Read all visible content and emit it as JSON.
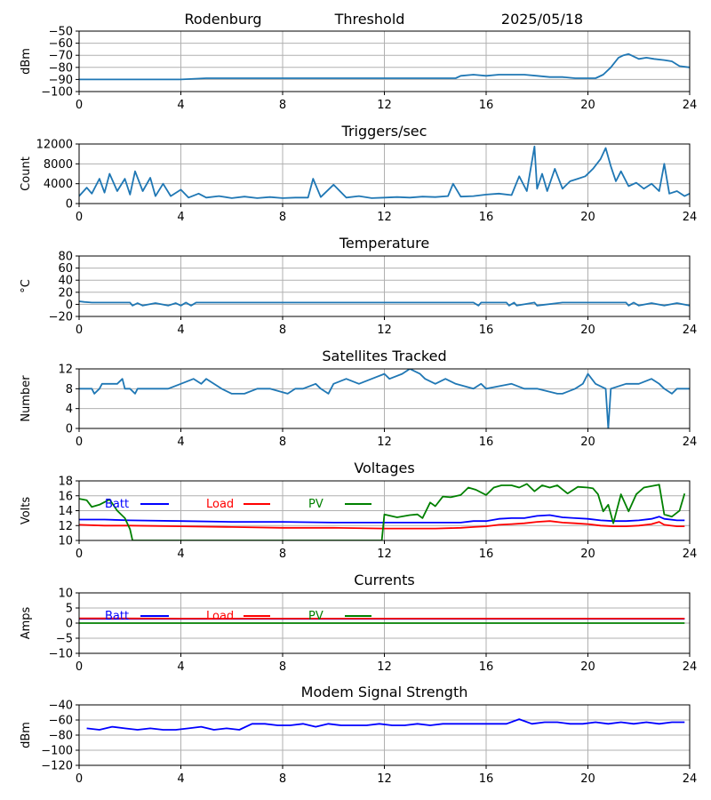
{
  "header": {
    "station": "Rodenburg",
    "mode": "Threshold",
    "date": "2025/05/18"
  },
  "colors": {
    "series_default": "#1f77b4",
    "batt": "#0000ff",
    "load": "#ff0000",
    "pv": "#008000",
    "grid": "#b0b0b0"
  },
  "chart_data": [
    {
      "id": "threshold",
      "type": "line",
      "title": "",
      "xlabel": "",
      "ylabel": "dBm",
      "xlim": [
        0,
        24
      ],
      "ylim": [
        -100,
        -50
      ],
      "xticks": [
        0,
        4,
        8,
        12,
        16,
        20,
        24
      ],
      "yticks": [
        -100,
        -90,
        -80,
        -70,
        -60,
        -50
      ],
      "grid": true,
      "series": [
        {
          "color": "#1f77b4",
          "x": [
            0,
            0.5,
            1,
            2,
            3,
            4,
            5,
            6,
            7,
            8,
            9,
            10,
            11,
            12,
            13,
            14,
            14.8,
            15,
            15.5,
            16,
            16.5,
            17,
            17.5,
            18,
            18.5,
            19,
            19.5,
            20,
            20.3,
            20.6,
            20.9,
            21.2,
            21.4,
            21.6,
            21.8,
            22,
            22.3,
            22.6,
            23,
            23.3,
            23.6,
            24
          ],
          "y": [
            -90,
            -90,
            -90,
            -90,
            -90,
            -90,
            -89,
            -89,
            -89,
            -89,
            -89,
            -89,
            -89,
            -89,
            -89,
            -89,
            -89,
            -87,
            -86,
            -87,
            -86,
            -86,
            -86,
            -87,
            -88,
            -88,
            -89,
            -89,
            -89,
            -86,
            -80,
            -72,
            -70,
            -69,
            -71,
            -73,
            -72,
            -73,
            -74,
            -75,
            -79,
            -80
          ]
        }
      ]
    },
    {
      "id": "triggers",
      "type": "line",
      "title": "Triggers/sec",
      "xlabel": "",
      "ylabel": "Count",
      "xlim": [
        0,
        24
      ],
      "ylim": [
        0,
        12000
      ],
      "xticks": [
        0,
        4,
        8,
        12,
        16,
        20,
        24
      ],
      "yticks": [
        0,
        4000,
        8000,
        12000
      ],
      "grid": true,
      "series": [
        {
          "color": "#1f77b4",
          "x": [
            0,
            0.3,
            0.5,
            0.8,
            1,
            1.2,
            1.5,
            1.8,
            2,
            2.2,
            2.5,
            2.8,
            3,
            3.3,
            3.6,
            4,
            4.3,
            4.7,
            5,
            5.5,
            6,
            6.5,
            7,
            7.5,
            8,
            8.5,
            9,
            9.2,
            9.5,
            10,
            10.5,
            11,
            11.5,
            12,
            12.5,
            13,
            13.5,
            14,
            14.5,
            14.7,
            15,
            15.5,
            16,
            16.5,
            17,
            17.3,
            17.6,
            17.9,
            18,
            18.2,
            18.4,
            18.7,
            19,
            19.3,
            19.6,
            19.9,
            20.2,
            20.5,
            20.7,
            20.9,
            21.1,
            21.3,
            21.6,
            21.9,
            22.2,
            22.5,
            22.8,
            23,
            23.2,
            23.5,
            23.8,
            24
          ],
          "y": [
            1500,
            3200,
            2000,
            5000,
            2200,
            6000,
            2500,
            5000,
            1800,
            6500,
            2500,
            5200,
            1500,
            4000,
            1500,
            2800,
            1200,
            2000,
            1200,
            1500,
            1100,
            1400,
            1100,
            1300,
            1100,
            1200,
            1200,
            5000,
            1300,
            3800,
            1200,
            1500,
            1100,
            1200,
            1300,
            1200,
            1400,
            1300,
            1500,
            4000,
            1400,
            1500,
            1800,
            2000,
            1700,
            5500,
            2500,
            11500,
            3000,
            6000,
            2500,
            7000,
            3000,
            4500,
            5000,
            5500,
            7000,
            9000,
            11200,
            7500,
            4500,
            6500,
            3500,
            4200,
            3000,
            4000,
            2500,
            8000,
            2000,
            2500,
            1500,
            2000
          ]
        }
      ]
    },
    {
      "id": "temperature",
      "type": "line",
      "title": "Temperature",
      "xlabel": "",
      "ylabel": "°C",
      "xlim": [
        0,
        24
      ],
      "ylim": [
        -20,
        80
      ],
      "xticks": [
        0,
        4,
        8,
        12,
        16,
        20,
        24
      ],
      "yticks": [
        -20,
        0,
        20,
        40,
        60,
        80
      ],
      "grid": true,
      "series": [
        {
          "color": "#1f77b4",
          "x": [
            0,
            0.2,
            0.5,
            1,
            2,
            2.1,
            2.3,
            2.5,
            3,
            3.5,
            3.8,
            4,
            4.2,
            4.4,
            4.6,
            5,
            8,
            12,
            15.5,
            15.7,
            15.8,
            16,
            16.8,
            16.9,
            17.1,
            17.2,
            17.9,
            18,
            19,
            19.1,
            21.5,
            21.6,
            21.8,
            22,
            22.5,
            23,
            23.5,
            24
          ],
          "y": [
            5,
            4,
            3,
            3,
            3,
            -2,
            2,
            -2,
            2,
            -2,
            2,
            -2,
            3,
            -2,
            3,
            3,
            3,
            3,
            3,
            -2,
            3,
            3,
            3,
            -2,
            3,
            -2,
            3,
            -2,
            3,
            3,
            3,
            -2,
            3,
            -2,
            2,
            -2,
            2,
            -2
          ]
        }
      ]
    },
    {
      "id": "satellites",
      "type": "line",
      "title": "Satellites Tracked",
      "xlabel": "",
      "ylabel": "Number",
      "xlim": [
        0,
        24
      ],
      "ylim": [
        0,
        12
      ],
      "xticks": [
        0,
        4,
        8,
        12,
        16,
        20,
        24
      ],
      "yticks": [
        0,
        4,
        8,
        12
      ],
      "grid": true,
      "series": [
        {
          "color": "#1f77b4",
          "x": [
            0,
            0.5,
            0.6,
            0.8,
            0.9,
            1.5,
            1.7,
            1.8,
            2,
            2.2,
            2.3,
            2.7,
            3.5,
            4,
            4.5,
            4.8,
            5,
            5.3,
            5.6,
            6,
            6.5,
            7,
            7.5,
            8.2,
            8.5,
            8.8,
            9.3,
            9.5,
            9.8,
            10,
            10.5,
            11,
            11.5,
            12,
            12.2,
            12.7,
            13,
            13.4,
            13.6,
            14,
            14.4,
            14.8,
            15.5,
            15.8,
            16,
            17,
            17.5,
            18,
            18.8,
            19,
            19.5,
            19.8,
            20,
            20.3,
            20.7,
            20.8,
            20.9,
            21.5,
            22,
            22.5,
            22.8,
            23,
            23.3,
            23.5,
            24
          ],
          "y": [
            8,
            8,
            7,
            8,
            9,
            9,
            10,
            8,
            8,
            7,
            8,
            8,
            8,
            9,
            10,
            9,
            10,
            9,
            8,
            7,
            7,
            8,
            8,
            7,
            8,
            8,
            9,
            8,
            7,
            9,
            10,
            9,
            10,
            11,
            10,
            11,
            12,
            11,
            10,
            9,
            10,
            9,
            8,
            9,
            8,
            9,
            8,
            8,
            7,
            7,
            8,
            9,
            11,
            9,
            8,
            0,
            8,
            9,
            9,
            10,
            9,
            8,
            7,
            8,
            8
          ]
        }
      ]
    },
    {
      "id": "voltages",
      "type": "line",
      "title": "Voltages",
      "xlabel": "",
      "ylabel": "Volts",
      "xlim": [
        0,
        24
      ],
      "ylim": [
        10,
        18
      ],
      "xticks": [
        0,
        4,
        8,
        12,
        16,
        20,
        24
      ],
      "yticks": [
        10,
        12,
        14,
        16,
        18
      ],
      "grid": true,
      "legend": [
        "Batt",
        "Load",
        "PV"
      ],
      "series": [
        {
          "name": "Batt",
          "color": "#0000ff",
          "x": [
            0,
            1,
            2,
            4,
            6,
            8,
            10,
            12,
            14,
            15,
            15.5,
            16,
            16.5,
            17,
            17.5,
            18,
            18.5,
            19,
            19.5,
            20,
            20.5,
            21,
            21.5,
            22,
            22.5,
            22.8,
            23,
            23.5,
            23.8
          ],
          "y": [
            12.8,
            12.8,
            12.7,
            12.6,
            12.5,
            12.5,
            12.4,
            12.4,
            12.4,
            12.4,
            12.6,
            12.6,
            12.9,
            13.0,
            13.0,
            13.3,
            13.4,
            13.1,
            13.0,
            12.9,
            12.7,
            12.6,
            12.6,
            12.7,
            12.9,
            13.2,
            12.9,
            12.7,
            12.7
          ]
        },
        {
          "name": "Load",
          "color": "#ff0000",
          "x": [
            0,
            1,
            2,
            4,
            6,
            8,
            10,
            12,
            14,
            15,
            15.5,
            16,
            16.5,
            17,
            17.5,
            18,
            18.5,
            19,
            19.5,
            20,
            20.5,
            21,
            21.5,
            22,
            22.5,
            22.8,
            23,
            23.5,
            23.8
          ],
          "y": [
            12.1,
            12.0,
            12.0,
            11.9,
            11.8,
            11.7,
            11.7,
            11.6,
            11.6,
            11.7,
            11.8,
            11.9,
            12.1,
            12.2,
            12.3,
            12.5,
            12.6,
            12.4,
            12.3,
            12.2,
            12.0,
            11.9,
            11.9,
            12.0,
            12.2,
            12.5,
            12.1,
            11.9,
            11.9
          ]
        },
        {
          "name": "PV",
          "color": "#008000",
          "x": [
            0,
            0.3,
            0.5,
            0.8,
            1.2,
            1.5,
            1.8,
            2.0,
            2.1,
            11.9,
            12.0,
            12.5,
            13,
            13.3,
            13.5,
            13.8,
            14,
            14.3,
            14.6,
            15,
            15.3,
            15.6,
            16,
            16.3,
            16.6,
            17,
            17.3,
            17.6,
            17.9,
            18.2,
            18.5,
            18.8,
            19.2,
            19.6,
            20,
            20.2,
            20.4,
            20.6,
            20.8,
            21,
            21.3,
            21.6,
            21.9,
            22.2,
            22.5,
            22.8,
            23,
            23.3,
            23.6,
            23.8
          ],
          "y": [
            15.6,
            15.4,
            14.5,
            14.8,
            15.5,
            14.0,
            13.0,
            11.5,
            10.0,
            10.0,
            13.5,
            13.1,
            13.4,
            13.5,
            13.0,
            15.1,
            14.6,
            15.9,
            15.8,
            16.1,
            17.1,
            16.8,
            16.1,
            17.1,
            17.4,
            17.4,
            17.1,
            17.6,
            16.6,
            17.4,
            17.1,
            17.4,
            16.3,
            17.2,
            17.1,
            17.0,
            16.2,
            13.9,
            14.8,
            12.3,
            16.2,
            13.9,
            16.2,
            17.1,
            17.3,
            17.5,
            13.5,
            13.2,
            14.0,
            16.3
          ]
        }
      ]
    },
    {
      "id": "currents",
      "type": "line",
      "title": "Currents",
      "xlabel": "",
      "ylabel": "Amps",
      "xlim": [
        0,
        24
      ],
      "ylim": [
        -10,
        10
      ],
      "xticks": [
        0,
        4,
        8,
        12,
        16,
        20,
        24
      ],
      "yticks": [
        -10,
        -5,
        0,
        5,
        10
      ],
      "grid": true,
      "legend": [
        "Batt",
        "Load",
        "PV"
      ],
      "series": [
        {
          "name": "Batt",
          "color": "#0000ff",
          "x": [
            0,
            4,
            8,
            12,
            16,
            20,
            23.8
          ],
          "y": [
            1.4,
            1.4,
            1.4,
            1.4,
            1.4,
            1.4,
            1.4
          ]
        },
        {
          "name": "Load",
          "color": "#ff0000",
          "x": [
            0,
            4,
            8,
            12,
            16,
            20,
            23.8
          ],
          "y": [
            1.6,
            1.5,
            1.5,
            1.5,
            1.5,
            1.5,
            1.5
          ]
        },
        {
          "name": "PV",
          "color": "#008000",
          "x": [
            0,
            4,
            8,
            12,
            16,
            20,
            23.8
          ],
          "y": [
            0,
            0,
            0,
            0,
            0,
            0,
            0
          ]
        }
      ]
    },
    {
      "id": "modem",
      "type": "line",
      "title": "Modem Signal Strength",
      "xlabel": "",
      "ylabel": "dBm",
      "xlim": [
        0,
        24
      ],
      "ylim": [
        -120,
        -40
      ],
      "xticks": [
        0,
        4,
        8,
        12,
        16,
        20,
        24
      ],
      "yticks": [
        -120,
        -100,
        -80,
        -60,
        -40
      ],
      "grid": true,
      "series": [
        {
          "color": "#0000ff",
          "x": [
            0.3,
            0.8,
            1.3,
            1.8,
            2.3,
            2.8,
            3.3,
            3.8,
            4.3,
            4.8,
            5.3,
            5.8,
            6.3,
            6.8,
            7.3,
            7.8,
            8.3,
            8.8,
            9.3,
            9.8,
            10.3,
            10.8,
            11.3,
            11.8,
            12.3,
            12.8,
            13.3,
            13.8,
            14.3,
            14.8,
            15.3,
            15.8,
            16.3,
            16.8,
            17.3,
            17.8,
            18.3,
            18.8,
            19.3,
            19.8,
            20.3,
            20.8,
            21.3,
            21.8,
            22.3,
            22.8,
            23.3,
            23.8
          ],
          "y": [
            -71,
            -73,
            -69,
            -71,
            -73,
            -71,
            -73,
            -73,
            -71,
            -69,
            -73,
            -71,
            -73,
            -65,
            -65,
            -67,
            -67,
            -65,
            -69,
            -65,
            -67,
            -67,
            -67,
            -65,
            -67,
            -67,
            -65,
            -67,
            -65,
            -65,
            -65,
            -65,
            -65,
            -65,
            -59,
            -65,
            -63,
            -63,
            -65,
            -65,
            -63,
            -65,
            -63,
            -65,
            -63,
            -65,
            -63,
            -63
          ]
        }
      ]
    }
  ]
}
